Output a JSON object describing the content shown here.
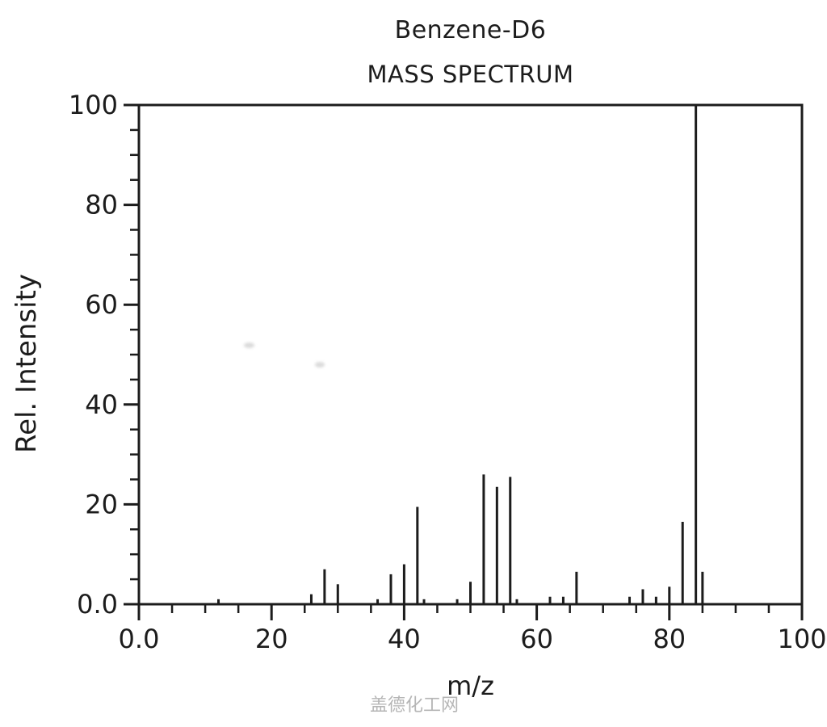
{
  "titles": {
    "compound": "Benzene-D6",
    "subtitle": "MASS SPECTRUM"
  },
  "axes": {
    "x": {
      "label": "m/z",
      "min": 0,
      "max": 100,
      "major_tick_values": [
        0,
        20,
        40,
        60,
        80,
        100
      ],
      "major_tick_labels": [
        "0.0",
        "20",
        "40",
        "60",
        "80",
        "100"
      ],
      "minor_tick_step": 5
    },
    "y": {
      "label": "Rel. Intensity",
      "min": 0,
      "max": 100,
      "major_tick_values": [
        0,
        20,
        40,
        60,
        80,
        100
      ],
      "major_tick_labels": [
        "0.0",
        "20",
        "40",
        "60",
        "80",
        "100"
      ],
      "minor_tick_step": 5
    }
  },
  "watermark": "盖德化工网",
  "colors": {
    "line": "#1c1c1c",
    "watermark": "#b6b6b6",
    "background": "#ffffff"
  },
  "chart_data": {
    "type": "bar",
    "subtype": "mass-spectrum-stick-plot",
    "title": "Benzene-D6",
    "subtitle": "MASS SPECTRUM",
    "xlabel": "m/z",
    "ylabel": "Rel. Intensity",
    "xlim": [
      0,
      100
    ],
    "ylim": [
      0,
      100
    ],
    "grid": false,
    "legend": false,
    "base_peak_mz": 84,
    "peaks": [
      {
        "mz": 12,
        "intensity": 1
      },
      {
        "mz": 26,
        "intensity": 2
      },
      {
        "mz": 28,
        "intensity": 7
      },
      {
        "mz": 30,
        "intensity": 4
      },
      {
        "mz": 36,
        "intensity": 1
      },
      {
        "mz": 38,
        "intensity": 6
      },
      {
        "mz": 40,
        "intensity": 8
      },
      {
        "mz": 42,
        "intensity": 19.5
      },
      {
        "mz": 43,
        "intensity": 1
      },
      {
        "mz": 48,
        "intensity": 1
      },
      {
        "mz": 50,
        "intensity": 4.5
      },
      {
        "mz": 52,
        "intensity": 26
      },
      {
        "mz": 54,
        "intensity": 23.5
      },
      {
        "mz": 56,
        "intensity": 25.5
      },
      {
        "mz": 57,
        "intensity": 1
      },
      {
        "mz": 62,
        "intensity": 1.5
      },
      {
        "mz": 64,
        "intensity": 1.5
      },
      {
        "mz": 66,
        "intensity": 6.5
      },
      {
        "mz": 74,
        "intensity": 1.5
      },
      {
        "mz": 76,
        "intensity": 3
      },
      {
        "mz": 78,
        "intensity": 1.5
      },
      {
        "mz": 80,
        "intensity": 3.5
      },
      {
        "mz": 82,
        "intensity": 16.5
      },
      {
        "mz": 84,
        "intensity": 100
      },
      {
        "mz": 85,
        "intensity": 6.5
      }
    ]
  }
}
